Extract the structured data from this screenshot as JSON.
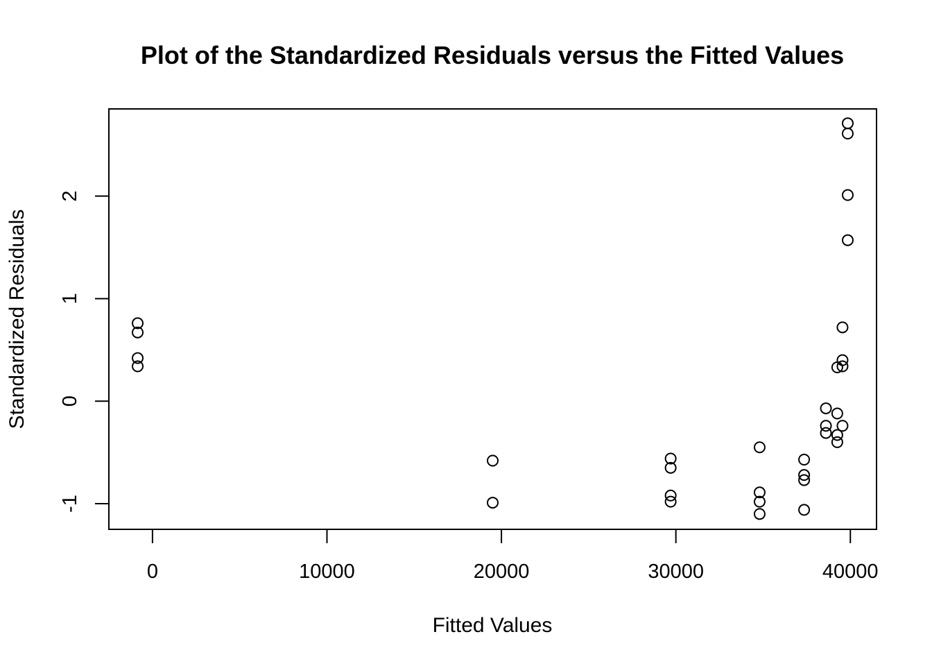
{
  "chart_data": {
    "type": "scatter",
    "title": "Plot of the Standardized Residuals versus the Fitted Values",
    "xlabel": "Fitted Values",
    "ylabel": "Standardized Residuals",
    "xlim": [
      -2500,
      41500
    ],
    "ylim": [
      -1.25,
      2.85
    ],
    "xticks": [
      0,
      10000,
      20000,
      30000,
      40000
    ],
    "xtick_labels": [
      "0",
      "10000",
      "20000",
      "30000",
      "40000"
    ],
    "yticks": [
      -1,
      0,
      1,
      2
    ],
    "ytick_labels": [
      "-1",
      "0",
      "1",
      "2"
    ],
    "marker": "open-circle",
    "grid": false,
    "series": [
      {
        "points": [
          [
            -850,
            0.76
          ],
          [
            -850,
            0.67
          ],
          [
            -850,
            0.42
          ],
          [
            -850,
            0.34
          ],
          [
            19500,
            -0.58
          ],
          [
            19500,
            -0.99
          ],
          [
            29700,
            -0.56
          ],
          [
            29700,
            -0.65
          ],
          [
            29700,
            -0.92
          ],
          [
            29700,
            -0.98
          ],
          [
            34800,
            -0.45
          ],
          [
            34800,
            -0.89
          ],
          [
            34800,
            -0.98
          ],
          [
            34800,
            -1.1
          ],
          [
            37350,
            -0.57
          ],
          [
            37350,
            -0.72
          ],
          [
            37350,
            -0.77
          ],
          [
            37350,
            -1.06
          ],
          [
            38600,
            -0.07
          ],
          [
            38600,
            -0.24
          ],
          [
            38600,
            -0.31
          ],
          [
            39250,
            0.33
          ],
          [
            39250,
            -0.12
          ],
          [
            39250,
            -0.33
          ],
          [
            39250,
            -0.4
          ],
          [
            39550,
            0.72
          ],
          [
            39550,
            0.4
          ],
          [
            39550,
            0.34
          ],
          [
            39550,
            -0.24
          ],
          [
            39850,
            2.71
          ],
          [
            39850,
            2.61
          ],
          [
            39850,
            2.01
          ],
          [
            39850,
            1.57
          ]
        ]
      }
    ]
  }
}
